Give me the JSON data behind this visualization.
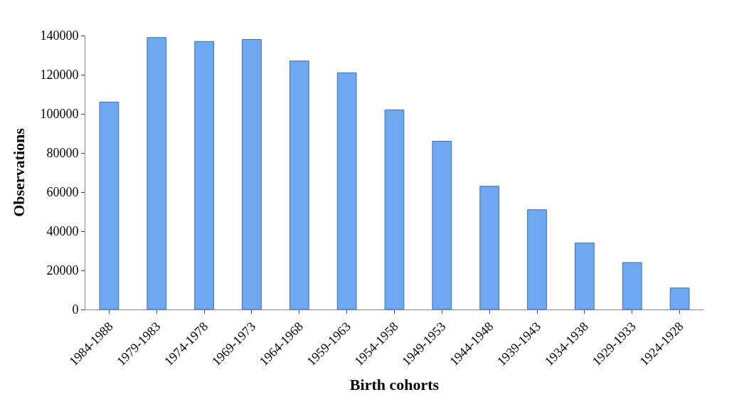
{
  "chart_data": {
    "type": "bar",
    "xlabel": "Birth cohorts",
    "ylabel": "Observations",
    "categories": [
      "1984-1988",
      "1979-1983",
      "1974-1978",
      "1969-1973",
      "1964-1968",
      "1959-1963",
      "1954-1958",
      "1949-1953",
      "1944-1948",
      "1939-1943",
      "1934-1938",
      "1929-1933",
      "1924-1928"
    ],
    "values": [
      106000,
      139000,
      137000,
      138000,
      127000,
      121000,
      102000,
      86000,
      63000,
      51000,
      34000,
      24000,
      11000
    ],
    "color": "#6fa8f0",
    "ylim": [
      0,
      140000
    ],
    "yticks": [
      0,
      20000,
      40000,
      60000,
      80000,
      100000,
      120000,
      140000
    ],
    "grid": false,
    "legend": false
  }
}
